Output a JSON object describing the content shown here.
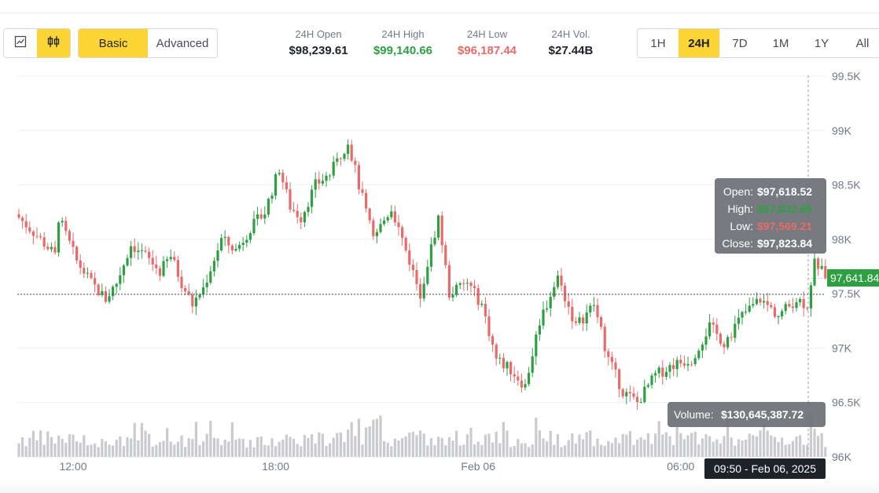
{
  "toolbar": {
    "icons": {
      "line": "line-chart-icon",
      "candle": "candlestick-icon"
    },
    "modes": {
      "basic": "Basic",
      "advanced": "Advanced"
    },
    "stats": [
      {
        "label": "24H Open",
        "value": "$98,239.61",
        "color": "#1e2329"
      },
      {
        "label": "24H High",
        "value": "$99,140.66",
        "color": "#2ea043"
      },
      {
        "label": "24H Low",
        "value": "$96,187.44",
        "color": "#e86a6a"
      },
      {
        "label": "24H Vol.",
        "value": "$27.44B",
        "color": "#1e2329"
      }
    ],
    "ranges": [
      "1H",
      "24H",
      "7D",
      "1M",
      "1Y",
      "All"
    ],
    "active_range": "24H"
  },
  "tooltip": {
    "open_label": "Open:",
    "open_value": "$97,618.52",
    "high_label": "High:",
    "high_value": "$97,832.69",
    "low_label": "Low:",
    "low_value": "$97,569.21",
    "close_label": "Close:",
    "close_value": "$97,823.84",
    "volume_label": "Volume:",
    "volume_value": "$130,645,387.72",
    "time_label": "09:50 - Feb 06, 2025"
  },
  "price_badge": "97,641.84",
  "colors": {
    "up": "#2ea043",
    "down": "#e86a6a",
    "accent": "#fcd535",
    "volume": "#c9cbcf"
  },
  "chart_data": {
    "type": "candlestick",
    "y_ticks": [
      "99.5K",
      "99K",
      "98.5K",
      "98K",
      "97.5K",
      "97K",
      "96.5K",
      "96K"
    ],
    "y_tick_values": [
      99500,
      99000,
      98500,
      98000,
      97500,
      97000,
      96500,
      96000
    ],
    "ylim": [
      96000,
      99500
    ],
    "x_ticks": [
      "12:00",
      "18:00",
      "Feb 06",
      "06:00"
    ],
    "crosshair_price": 97500,
    "last_price": 97641.84,
    "close_path": [
      [
        0,
        98200
      ],
      [
        6,
        98000
      ],
      [
        10,
        97850
      ],
      [
        11,
        98200
      ],
      [
        16,
        97800
      ],
      [
        20,
        97600
      ],
      [
        24,
        97450
      ],
      [
        27,
        97600
      ],
      [
        31,
        97950
      ],
      [
        35,
        97850
      ],
      [
        39,
        97700
      ],
      [
        42,
        97850
      ],
      [
        45,
        97600
      ],
      [
        48,
        97400
      ],
      [
        51,
        97550
      ],
      [
        56,
        98000
      ],
      [
        60,
        97900
      ],
      [
        64,
        98100
      ],
      [
        68,
        98250
      ],
      [
        72,
        98650
      ],
      [
        75,
        98300
      ],
      [
        78,
        98200
      ],
      [
        82,
        98500
      ],
      [
        86,
        98600
      ],
      [
        91,
        98900
      ],
      [
        94,
        98500
      ],
      [
        98,
        98000
      ],
      [
        103,
        98300
      ],
      [
        107,
        97900
      ],
      [
        111,
        97500
      ],
      [
        116,
        98200
      ],
      [
        119,
        97500
      ],
      [
        124,
        97600
      ],
      [
        128,
        97400
      ],
      [
        132,
        96900
      ],
      [
        136,
        96800
      ],
      [
        140,
        96650
      ],
      [
        144,
        97250
      ],
      [
        149,
        97650
      ],
      [
        154,
        97200
      ],
      [
        159,
        97400
      ],
      [
        163,
        96900
      ],
      [
        167,
        96600
      ],
      [
        171,
        96500
      ],
      [
        176,
        96750
      ],
      [
        181,
        96850
      ],
      [
        186,
        96900
      ],
      [
        191,
        97200
      ],
      [
        195,
        97050
      ],
      [
        200,
        97300
      ],
      [
        205,
        97450
      ],
      [
        210,
        97300
      ],
      [
        215,
        97450
      ],
      [
        218,
        97400
      ],
      [
        220,
        97823
      ],
      [
        223,
        97642
      ]
    ],
    "volume_max": 130645387.72
  }
}
